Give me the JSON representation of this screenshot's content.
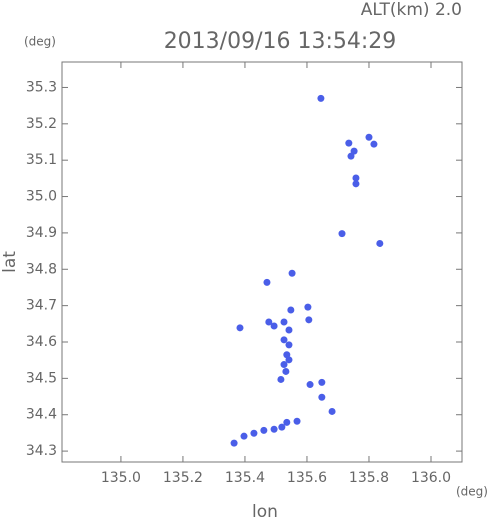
{
  "chart_data": {
    "type": "scatter",
    "title": "2013/09/16 13:54:29",
    "subtitle": "ALT(km) 2.0",
    "x_label": "lon",
    "y_label": "lat",
    "x_unit": "(deg)",
    "y_unit": "(deg)",
    "color": "#4a5ee8",
    "xlim": [
      134.81,
      136.1
    ],
    "ylim": [
      34.27,
      35.37
    ],
    "xticks": [
      {
        "value": 135,
        "label": "135.0"
      },
      135.2,
      135.4,
      135.6,
      135.8,
      {
        "value": 136,
        "label": "136.0"
      }
    ],
    "yticks": [
      34.3,
      34.4,
      34.5,
      34.6,
      34.7,
      34.8,
      34.9,
      {
        "value": 35,
        "label": "35.0"
      },
      35.1,
      35.2,
      35.3
    ],
    "x": [
      135.645,
      135.735,
      135.752,
      135.742,
      135.8,
      135.816,
      135.758,
      135.758,
      135.713,
      135.835,
      135.552,
      135.471,
      135.548,
      135.526,
      135.603,
      135.606,
      135.384,
      135.477,
      135.494,
      135.542,
      135.526,
      135.542,
      135.535,
      135.526,
      135.542,
      135.532,
      135.516,
      135.61,
      135.648,
      135.648,
      135.681,
      135.535,
      135.568,
      135.365,
      135.397,
      135.429,
      135.461,
      135.494,
      135.519
    ],
    "values": [
      35.27,
      35.147,
      35.125,
      35.111,
      35.163,
      35.144,
      35.051,
      35.035,
      34.898,
      34.871,
      34.789,
      34.764,
      34.688,
      34.655,
      34.696,
      34.661,
      34.639,
      34.655,
      34.644,
      34.633,
      34.606,
      34.592,
      34.565,
      34.538,
      34.551,
      34.519,
      34.497,
      34.483,
      34.489,
      34.448,
      34.409,
      34.379,
      34.382,
      34.322,
      34.341,
      34.349,
      34.357,
      34.36,
      34.366
    ]
  }
}
